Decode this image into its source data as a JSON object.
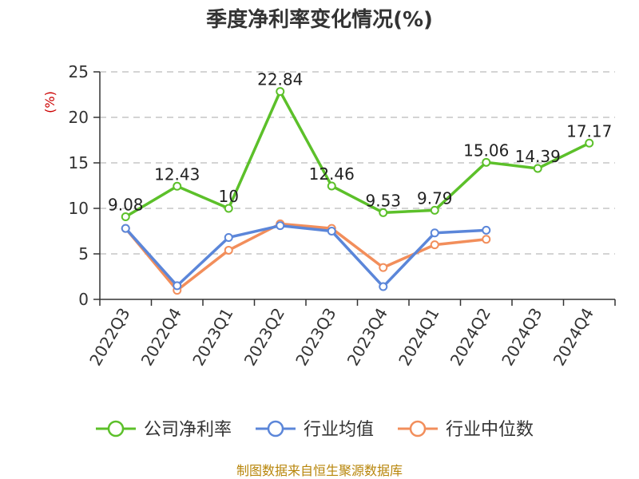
{
  "chart_data": {
    "type": "line",
    "title": "季度净利率变化情况(%)",
    "ylabel": "(%)",
    "xlabel": "",
    "categories": [
      "2022Q3",
      "2022Q4",
      "2023Q1",
      "2023Q2",
      "2023Q3",
      "2023Q4",
      "2024Q1",
      "2024Q2",
      "2024Q3",
      "2024Q4"
    ],
    "ylim": [
      0,
      25
    ],
    "yticks": [
      0,
      5,
      10,
      15,
      20,
      25
    ],
    "grid": true,
    "legend_position": "bottom",
    "series": [
      {
        "name": "公司净利率",
        "color": "#5cc02a",
        "values": [
          9.08,
          12.43,
          10,
          22.84,
          12.46,
          9.53,
          9.79,
          15.06,
          14.39,
          17.17
        ],
        "labels": [
          "9.08",
          "12.43",
          "10",
          "22.84",
          "12.46",
          "9.53",
          "9.79",
          "15.06",
          "14.39",
          "17.17"
        ]
      },
      {
        "name": "行业均值",
        "color": "#5b86d9",
        "values": [
          7.8,
          1.5,
          6.8,
          8.1,
          7.5,
          1.4,
          7.3,
          7.6,
          null,
          null
        ]
      },
      {
        "name": "行业中位数",
        "color": "#f28e5b",
        "values": [
          7.8,
          1.0,
          5.4,
          8.3,
          7.8,
          3.5,
          6.0,
          6.6,
          null,
          null
        ]
      }
    ],
    "source": "制图数据来自恒生聚源数据库"
  }
}
